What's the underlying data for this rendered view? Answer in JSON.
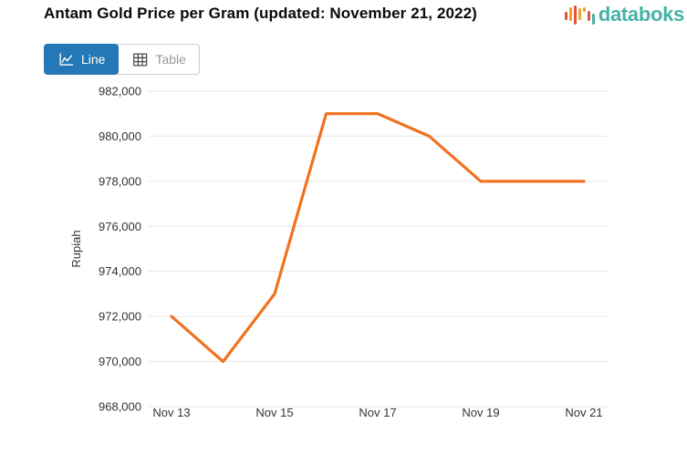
{
  "header": {
    "title": "Antam Gold Price per Gram (updated: November 21, 2022)",
    "logo": {
      "text": "databoks",
      "icon": "databoks-bars-icon",
      "text_color": "#45b2a7",
      "bar_colors": [
        "#e2523f",
        "#f59b1e",
        "#e2523f",
        "#f0a32f",
        "#f59b1e",
        "#e2523f",
        "#45b2a7"
      ]
    }
  },
  "toolbar": {
    "line_button": {
      "label": "Line",
      "icon": "line-chart-icon",
      "active": true,
      "active_color": "#2478b5"
    },
    "table_button": {
      "label": "Table",
      "icon": "table-icon",
      "active": false
    }
  },
  "chart_data": {
    "type": "line",
    "title": "Antam Gold Price per Gram (updated: November 21, 2022)",
    "xlabel": "",
    "ylabel": "Rupiah",
    "series": [
      {
        "name": "Antam Gold Price per Gram",
        "color": "#f1711f",
        "points": [
          {
            "date": "Nov 13",
            "value": 972000
          },
          {
            "date": "Nov 14",
            "value": 970000
          },
          {
            "date": "Nov 15",
            "value": 973000
          },
          {
            "date": "Nov 16",
            "value": 981000
          },
          {
            "date": "Nov 17",
            "value": 981000
          },
          {
            "date": "Nov 18",
            "value": 980000
          },
          {
            "date": "Nov 19",
            "value": 978000
          },
          {
            "date": "Nov 20",
            "value": 978000
          },
          {
            "date": "Nov 21",
            "value": 978000
          }
        ]
      }
    ],
    "ylim": [
      968000,
      982000
    ],
    "yticks": [
      {
        "value": 982000,
        "label": "982,000"
      },
      {
        "value": 980000,
        "label": "980,000"
      },
      {
        "value": 978000,
        "label": "978,000"
      },
      {
        "value": 976000,
        "label": "976,000"
      },
      {
        "value": 974000,
        "label": "974,000"
      },
      {
        "value": 972000,
        "label": "972,000"
      },
      {
        "value": 970000,
        "label": "970,000"
      },
      {
        "value": 968000,
        "label": "968,000"
      }
    ],
    "xticks_shown": [
      "Nov 13",
      "Nov 15",
      "Nov 17",
      "Nov 19",
      "Nov 21"
    ],
    "grid": true,
    "gridline_color": "#e6e6e6",
    "axis_label_color": "#333333",
    "legend": "none"
  }
}
